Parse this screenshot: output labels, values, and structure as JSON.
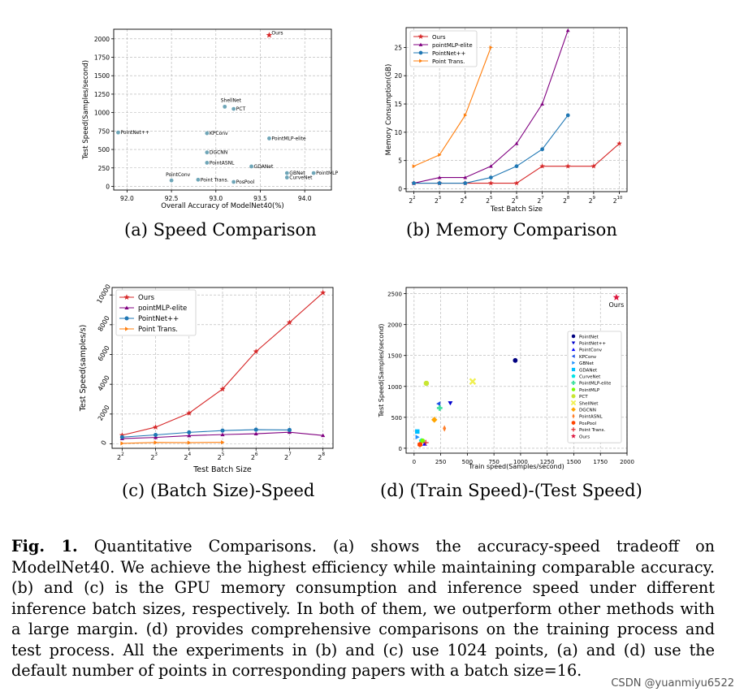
{
  "captions": {
    "a": "(a) Speed Comparison",
    "b": "(b) Memory Comparison",
    "c": "(c) (Batch Size)-Speed",
    "d": "(d) (Train Speed)-(Test Speed)"
  },
  "figure_caption": {
    "label": "Fig. 1.",
    "text": "Quantitative Comparisons. (a) shows the accuracy-speed tradeoff on ModelNet40. We achieve the highest efficiency while maintaining comparable accuracy. (b) and (c) is the GPU memory consumption and inference speed under different inference batch sizes, respectively. In both of them, we outperform other methods with a large margin. (d) provides comprehensive comparisons on the training process and test process. All the experiments in (b) and (c) use 1024 points, (a) and (d) use the default number of points in corresponding papers with a batch size=16."
  },
  "watermark": "CSDN @yuanmiyu6522",
  "colors": {
    "ours": "#d62728",
    "elite": "#800080",
    "pointnetpp": "#1f77b4",
    "pointtrans": "#ff7f0e",
    "scatter_a": "#6fa6b8"
  },
  "chart_data": [
    {
      "type": "scatter",
      "title": "",
      "xlabel": "Overall Accuracy of ModelNet40(%)",
      "ylabel": "Test Speed(Samples/second)",
      "xlim": [
        91.85,
        94.3
      ],
      "ylim": [
        -50,
        2130
      ],
      "xticks": [
        92.0,
        92.5,
        93.0,
        93.5,
        94.0
      ],
      "xtick_labels": [
        "92.0",
        "92.5",
        "93.0",
        "93.5",
        "94.0"
      ],
      "yticks": [
        0,
        250,
        500,
        750,
        1000,
        1250,
        1500,
        1750,
        2000
      ],
      "ytick_labels": [
        "0",
        "250",
        "500",
        "750",
        "1000",
        "1250",
        "1500",
        "1750",
        "2000"
      ],
      "points": [
        {
          "label": "Ours",
          "x": 93.6,
          "y": 2050,
          "marker": "star"
        },
        {
          "label": "PointNet++",
          "x": 91.9,
          "y": 730
        },
        {
          "label": "KPConv",
          "x": 92.9,
          "y": 720
        },
        {
          "label": "ShellNet",
          "x": 93.1,
          "y": 1080
        },
        {
          "label": "PCT",
          "x": 93.2,
          "y": 1050
        },
        {
          "label": "PointMLP-elite",
          "x": 93.6,
          "y": 650
        },
        {
          "label": "DGCNN",
          "x": 92.9,
          "y": 460
        },
        {
          "label": "PointASNL",
          "x": 92.9,
          "y": 320
        },
        {
          "label": "GDANet",
          "x": 93.4,
          "y": 270
        },
        {
          "label": "GBNet",
          "x": 93.8,
          "y": 180
        },
        {
          "label": "CurveNet",
          "x": 93.8,
          "y": 120
        },
        {
          "label": "PointMLP",
          "x": 94.1,
          "y": 180
        },
        {
          "label": "PointConv",
          "x": 92.5,
          "y": 80
        },
        {
          "label": "Point Trans.",
          "x": 92.8,
          "y": 90
        },
        {
          "label": "PosPool",
          "x": 93.2,
          "y": 60
        }
      ]
    },
    {
      "type": "line",
      "title": "",
      "xlabel": "Test Batch Size",
      "ylabel": "Memory Consumption(GB)",
      "x_exponents": [
        2,
        3,
        4,
        5,
        6,
        7,
        8,
        9,
        10
      ],
      "x_base": "2",
      "ylim": [
        -0.5,
        28.5
      ],
      "yticks": [
        0,
        5,
        10,
        15,
        20,
        25
      ],
      "ytick_labels": [
        "0",
        "5",
        "10",
        "15",
        "20",
        "25"
      ],
      "legend": "top-left",
      "series": [
        {
          "name": "Ours",
          "color_key": "ours",
          "marker": "star",
          "x": [
            2,
            3,
            4,
            5,
            6,
            7,
            8,
            9,
            10
          ],
          "values": [
            1,
            1,
            1,
            1,
            1,
            4,
            4,
            4,
            8
          ]
        },
        {
          "name": "pointMLP-elite",
          "color_key": "elite",
          "marker": "triangle",
          "x": [
            2,
            3,
            4,
            5,
            6,
            7,
            8
          ],
          "values": [
            1,
            2,
            2,
            4,
            8,
            15,
            28
          ]
        },
        {
          "name": "PointNet++",
          "color_key": "pointnetpp",
          "marker": "circle",
          "x": [
            2,
            3,
            4,
            5,
            6,
            7,
            8
          ],
          "values": [
            1,
            1,
            1,
            2,
            4,
            7,
            13
          ]
        },
        {
          "name": "Point Trans.",
          "color_key": "pointtrans",
          "marker": "triangle-right",
          "x": [
            2,
            3,
            4,
            5
          ],
          "values": [
            4,
            6,
            13,
            25
          ]
        }
      ]
    },
    {
      "type": "line",
      "title": "",
      "xlabel": "Test Batch Size",
      "ylabel": "Test Speed(samples/s)",
      "x_exponents": [
        2,
        3,
        4,
        5,
        6,
        7,
        8
      ],
      "x_base": "2",
      "ylim": [
        -300,
        10500
      ],
      "yticks": [
        0,
        2000,
        4000,
        6000,
        8000,
        10000
      ],
      "ytick_labels": [
        "0",
        "2000",
        "4000",
        "6000",
        "8000",
        "10000"
      ],
      "legend": "top-left",
      "series": [
        {
          "name": "Ours",
          "color_key": "ours",
          "marker": "star",
          "x": [
            2,
            3,
            4,
            5,
            6,
            7,
            8
          ],
          "values": [
            580,
            1120,
            2060,
            3680,
            6200,
            8150,
            10150
          ]
        },
        {
          "name": "pointMLP-elite",
          "color_key": "elite",
          "marker": "triangle",
          "x": [
            2,
            3,
            4,
            5,
            6,
            7,
            8
          ],
          "values": [
            350,
            430,
            550,
            620,
            680,
            780,
            560
          ]
        },
        {
          "name": "PointNet++",
          "color_key": "pointnetpp",
          "marker": "circle",
          "x": [
            2,
            3,
            4,
            5,
            6,
            7
          ],
          "values": [
            450,
            600,
            770,
            890,
            950,
            930
          ]
        },
        {
          "name": "Point Trans.",
          "color_key": "pointtrans",
          "marker": "triangle-right",
          "x": [
            2,
            3,
            4,
            5
          ],
          "values": [
            30,
            90,
            80,
            100
          ]
        }
      ]
    },
    {
      "type": "scatter",
      "title": "",
      "xlabel": "Train speed(Samples/second)",
      "ylabel": "Test Speed(Samples/second)",
      "xlim": [
        -75,
        2000
      ],
      "ylim": [
        -80,
        2600
      ],
      "xticks": [
        0,
        250,
        500,
        750,
        1000,
        1250,
        1500,
        1750,
        2000
      ],
      "xtick_labels": [
        "0",
        "250",
        "500",
        "750",
        "1000",
        "1250",
        "1500",
        "1750",
        "2000"
      ],
      "yticks": [
        0,
        500,
        1000,
        1500,
        2000,
        2500
      ],
      "ytick_labels": [
        "0",
        "500",
        "1000",
        "1500",
        "2000",
        "2500"
      ],
      "legend": "right",
      "annotation": "Ours",
      "points": [
        {
          "label": "PointNet",
          "x": 950,
          "y": 1420,
          "color": "#000080",
          "marker": "circle"
        },
        {
          "label": "PointNet++",
          "x": 340,
          "y": 730,
          "color": "#0000cd",
          "marker": "triangle-down"
        },
        {
          "label": "PointConv",
          "x": 100,
          "y": 70,
          "color": "#0000ff",
          "marker": "triangle-up"
        },
        {
          "label": "KPConv",
          "x": 230,
          "y": 720,
          "color": "#1e50e6",
          "marker": "triangle-left"
        },
        {
          "label": "GBNet",
          "x": 30,
          "y": 180,
          "color": "#1e90ff",
          "marker": "triangle-right"
        },
        {
          "label": "GDANet",
          "x": 30,
          "y": 270,
          "color": "#00bfff",
          "marker": "square"
        },
        {
          "label": "CurveNet",
          "x": 70,
          "y": 120,
          "color": "#00e5e5",
          "marker": "pentagon"
        },
        {
          "label": "PointMLP-elite",
          "x": 240,
          "y": 650,
          "color": "#40e0a0",
          "marker": "plus-filled"
        },
        {
          "label": "PointMLP",
          "x": 80,
          "y": 120,
          "color": "#7cfc00",
          "marker": "circle"
        },
        {
          "label": "PCT",
          "x": 115,
          "y": 1050,
          "color": "#c8e632",
          "marker": "octagon"
        },
        {
          "label": "ShellNet",
          "x": 550,
          "y": 1080,
          "color": "#f0f050",
          "marker": "x-filled"
        },
        {
          "label": "DGCNN",
          "x": 190,
          "y": 460,
          "color": "#ffa500",
          "marker": "diamond"
        },
        {
          "label": "PointASNL",
          "x": 285,
          "y": 320,
          "color": "#ff7f2a",
          "marker": "thin-diamond"
        },
        {
          "label": "PosPool",
          "x": 55,
          "y": 60,
          "color": "#ff4500",
          "marker": "hexagon"
        },
        {
          "label": "Point Trans.",
          "x": 110,
          "y": 90,
          "color": "#e03030",
          "marker": "plus"
        },
        {
          "label": "Ours",
          "x": 1900,
          "y": 2440,
          "color": "#dc143c",
          "marker": "star"
        }
      ]
    }
  ]
}
